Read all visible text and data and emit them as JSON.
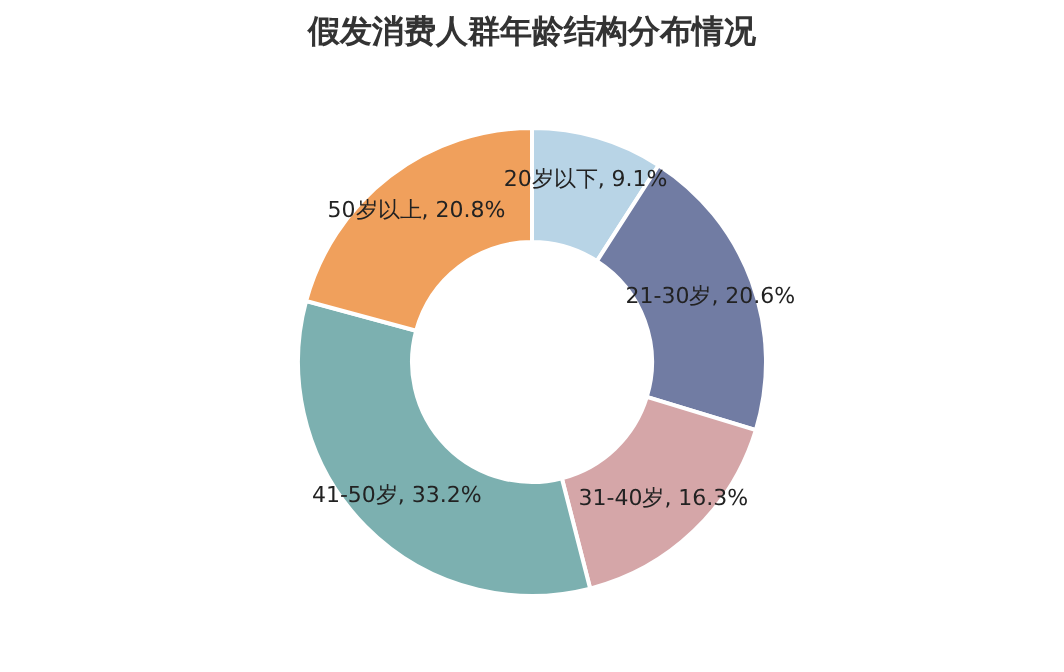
{
  "chart_data": {
    "type": "donut",
    "title": "假发消费人群年龄结构分布情况",
    "categories": [
      "20岁以下",
      "21-30岁",
      "31-40岁",
      "41-50岁",
      "50岁以上"
    ],
    "values": [
      9.1,
      20.6,
      16.3,
      33.2,
      20.8
    ],
    "value_labels": [
      "9.1%",
      "20.6%",
      "16.3%",
      "33.2%",
      "20.8%"
    ],
    "colors": [
      "#b8d4e6",
      "#717ca3",
      "#d5a6a8",
      "#7cb0b0",
      "#f0a05c"
    ],
    "legend": false
  }
}
